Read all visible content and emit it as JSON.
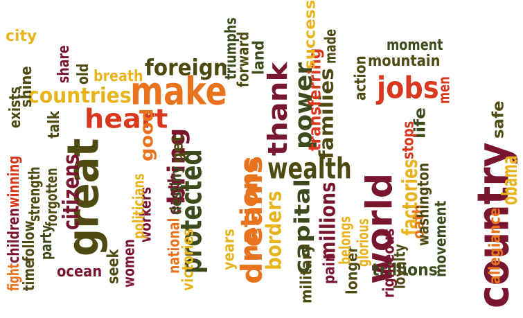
{
  "palette": {
    "maroon": "#7a1530",
    "olive": "#4e4a12",
    "dark_green": "#3c4a1c",
    "orange": "#e8731e",
    "amber": "#e8b41e",
    "red_orange": "#d8391e"
  },
  "words": [
    {
      "text": "country",
      "color": "maroon",
      "vertical": true
    },
    {
      "text": "world",
      "color": "maroon",
      "vertical": true
    },
    {
      "text": "dreams",
      "color": "orange",
      "vertical": true
    },
    {
      "text": "protected",
      "color": "dark_green",
      "vertical": true
    },
    {
      "text": "great",
      "color": "olive",
      "vertical": true
    },
    {
      "text": "make",
      "color": "orange",
      "vertical": false
    },
    {
      "text": "jobs",
      "color": "red_orange",
      "vertical": false
    },
    {
      "text": "heart",
      "color": "red_orange",
      "vertical": false
    },
    {
      "text": "wealth",
      "color": "olive",
      "vertical": false
    },
    {
      "text": "power",
      "color": "dark_green",
      "vertical": true
    },
    {
      "text": "thank",
      "color": "maroon",
      "vertical": true
    },
    {
      "text": "citizens",
      "color": "maroon",
      "vertical": true
    },
    {
      "text": "foreign",
      "color": "olive",
      "vertical": false
    },
    {
      "text": "bring",
      "color": "maroon",
      "vertical": true
    },
    {
      "text": "nations",
      "color": "orange",
      "vertical": true
    },
    {
      "text": "borders",
      "color": "amber",
      "vertical": true
    },
    {
      "text": "capital",
      "color": "dark_green",
      "vertical": true
    },
    {
      "text": "families",
      "color": "olive",
      "vertical": true
    },
    {
      "text": "millions",
      "color": "maroon",
      "vertical": true
    },
    {
      "text": "countries",
      "color": "amber",
      "vertical": false
    },
    {
      "text": "obama",
      "color": "amber",
      "vertical": true
    },
    {
      "text": "factories",
      "color": "amber",
      "vertical": true
    },
    {
      "text": "good",
      "color": "orange",
      "vertical": true
    },
    {
      "text": "mountain",
      "color": "olive",
      "vertical": false
    },
    {
      "text": "moment",
      "color": "dark_green",
      "vertical": false
    },
    {
      "text": "breath",
      "color": "amber",
      "vertical": false
    },
    {
      "text": "transferring",
      "color": "red_orange",
      "vertical": true
    },
    {
      "text": "trillions",
      "color": "dark_green",
      "vertical": false
    },
    {
      "text": "success",
      "color": "amber",
      "vertical": true
    },
    {
      "text": "forward",
      "color": "olive",
      "vertical": true
    },
    {
      "text": "triumphs",
      "color": "dark_green",
      "vertical": true
    },
    {
      "text": "land",
      "color": "dark_green",
      "vertical": true
    },
    {
      "text": "made",
      "color": "olive",
      "vertical": true
    },
    {
      "text": "action",
      "color": "olive",
      "vertical": true
    },
    {
      "text": "men",
      "color": "red_orange",
      "vertical": true
    },
    {
      "text": "safe",
      "color": "olive",
      "vertical": true
    },
    {
      "text": "life",
      "color": "dark_green",
      "vertical": true
    },
    {
      "text": "stops",
      "color": "red_orange",
      "vertical": true
    },
    {
      "text": "oath",
      "color": "orange",
      "vertical": true
    },
    {
      "text": "washington",
      "color": "olive",
      "vertical": true
    },
    {
      "text": "movement",
      "color": "dark_green",
      "vertical": true
    },
    {
      "text": "allegiance",
      "color": "orange",
      "vertical": true
    },
    {
      "text": "righteous",
      "color": "maroon",
      "vertical": true
    },
    {
      "text": "loyalty",
      "color": "olive",
      "vertical": true
    },
    {
      "text": "longer",
      "color": "olive",
      "vertical": true
    },
    {
      "text": "glorious",
      "color": "amber",
      "vertical": true
    },
    {
      "text": "belongs",
      "color": "amber",
      "vertical": true
    },
    {
      "text": "pain",
      "color": "maroon",
      "vertical": true
    },
    {
      "text": "military",
      "color": "olive",
      "vertical": true
    },
    {
      "text": "years",
      "color": "amber",
      "vertical": true
    },
    {
      "text": "victories",
      "color": "amber",
      "vertical": true
    },
    {
      "text": "national",
      "color": "orange",
      "vertical": true
    },
    {
      "text": "earth",
      "color": "maroon",
      "vertical": true
    },
    {
      "text": "destiny",
      "color": "dark_green",
      "vertical": true
    },
    {
      "text": "get",
      "color": "olive",
      "vertical": true
    },
    {
      "text": "workers",
      "color": "maroon",
      "vertical": true
    },
    {
      "text": "politicians",
      "color": "amber",
      "vertical": true
    },
    {
      "text": "women",
      "color": "maroon",
      "vertical": true
    },
    {
      "text": "seek",
      "color": "olive",
      "vertical": true
    },
    {
      "text": "ocean",
      "color": "maroon",
      "vertical": false
    },
    {
      "text": "forgotten",
      "color": "olive",
      "vertical": true
    },
    {
      "text": "strength",
      "color": "olive",
      "vertical": true
    },
    {
      "text": "talk",
      "color": "olive",
      "vertical": true
    },
    {
      "text": "party",
      "color": "dark_green",
      "vertical": true
    },
    {
      "text": "follow",
      "color": "olive",
      "vertical": true
    },
    {
      "text": "children",
      "color": "maroon",
      "vertical": true
    },
    {
      "text": "winning",
      "color": "red_orange",
      "vertical": true
    },
    {
      "text": "time",
      "color": "olive",
      "vertical": true
    },
    {
      "text": "fight",
      "color": "orange",
      "vertical": true
    },
    {
      "text": "exists",
      "color": "olive",
      "vertical": true
    },
    {
      "text": "shine",
      "color": "olive",
      "vertical": true
    },
    {
      "text": "city",
      "color": "amber",
      "vertical": false
    },
    {
      "text": "share",
      "color": "maroon",
      "vertical": true
    },
    {
      "text": "old",
      "color": "olive",
      "vertical": true
    }
  ]
}
